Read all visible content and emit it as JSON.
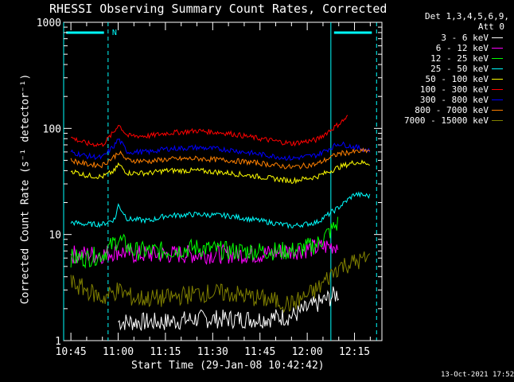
{
  "chart_data": {
    "type": "line",
    "title": "RHESSI Observing Summary Count Rates, Corrected",
    "xlabel": "Start Time (29-Jan-08 10:42:42)",
    "ylabel": "Corrected Count Rate (s⁻¹ detector⁻¹)",
    "x_ticks": [
      "10:45",
      "11:00",
      "11:15",
      "11:30",
      "11:45",
      "12:00",
      "12:15"
    ],
    "x_tick_minutes": [
      0,
      15,
      30,
      45,
      60,
      75,
      90
    ],
    "xlim_minutes": [
      -2.3,
      98.7
    ],
    "y_scale": "log",
    "ylim": [
      1,
      1000
    ],
    "y_ticks": [
      "1",
      "10",
      "100",
      "1000"
    ],
    "y_tick_values": [
      1,
      10,
      100,
      1000
    ],
    "detectors_note": "Det 1,3,4,5,6,9,",
    "attenuator_note": "Att 0",
    "timestamp": "13-Oct-2021 17:52",
    "n_marker": "N",
    "night_markers_minutes": [
      -2.3,
      11.8,
      82.5,
      97.0
    ],
    "night_bars": [
      {
        "start_minutes": -1.5,
        "end_minutes": 10.5
      },
      {
        "start_minutes": 83.5,
        "end_minutes": 95.5
      }
    ],
    "series": [
      {
        "name": "3 - 6 keV",
        "color": "#ffffff",
        "x": [
          15,
          20,
          30,
          40,
          50,
          60,
          70,
          78,
          85
        ],
        "y": [
          1.5,
          1.5,
          1.5,
          1.6,
          1.6,
          1.6,
          1.7,
          2.2,
          2.8
        ]
      },
      {
        "name": "6 - 12 keV",
        "color": "#ff00ff",
        "x": [
          0,
          5,
          10,
          15,
          20,
          30,
          40,
          50,
          60,
          70,
          78,
          85
        ],
        "y": [
          6.5,
          6.5,
          6.5,
          7.0,
          6.5,
          6.5,
          6.5,
          6.5,
          6.5,
          7.0,
          7.5,
          8.0
        ]
      },
      {
        "name": "12 - 25 keV",
        "color": "#00ff00",
        "x": [
          0,
          5,
          10,
          15,
          20,
          30,
          40,
          50,
          60,
          70,
          78,
          85
        ],
        "y": [
          6.0,
          6.0,
          6.5,
          9.0,
          7.0,
          7.0,
          7.5,
          7.0,
          7.0,
          7.0,
          8.0,
          13.0
        ]
      },
      {
        "name": "25 - 50 keV",
        "color": "#00ffff",
        "x": [
          0,
          5,
          10,
          14,
          15,
          18,
          25,
          30,
          40,
          50,
          60,
          70,
          78,
          85,
          90,
          95
        ],
        "y": [
          13.0,
          12.5,
          12.5,
          14.0,
          19.0,
          14.0,
          13.5,
          15.0,
          15.5,
          15.0,
          13.5,
          12.0,
          13.0,
          18.0,
          24.0,
          23.0
        ]
      },
      {
        "name": "50 - 100 keV",
        "color": "#ffff00",
        "x": [
          0,
          5,
          10,
          14,
          15,
          18,
          25,
          30,
          40,
          50,
          60,
          70,
          78,
          85,
          90,
          95
        ],
        "y": [
          40,
          36,
          35,
          40,
          46,
          38,
          38,
          40,
          40,
          38,
          35,
          32,
          35,
          43,
          48,
          47
        ]
      },
      {
        "name": "100 - 300 keV",
        "color": "#ff0000",
        "x": [
          0,
          5,
          10,
          14,
          15,
          18,
          25,
          30,
          40,
          50,
          60,
          70,
          78,
          85,
          88
        ],
        "y": [
          82,
          72,
          70,
          95,
          110,
          85,
          85,
          90,
          95,
          90,
          80,
          72,
          78,
          110,
          130
        ]
      },
      {
        "name": "300 - 800 keV",
        "color": "#0000ff",
        "x": [
          0,
          5,
          10,
          14,
          15,
          18,
          25,
          30,
          40,
          50,
          60,
          70,
          78,
          85,
          95
        ],
        "y": [
          60,
          55,
          53,
          70,
          80,
          60,
          60,
          64,
          66,
          63,
          57,
          52,
          56,
          72,
          62
        ]
      },
      {
        "name": "800 - 7000 keV",
        "color": "#ff8000",
        "x": [
          0,
          5,
          10,
          14,
          15,
          18,
          25,
          30,
          40,
          50,
          60,
          70,
          78,
          85,
          95
        ],
        "y": [
          50,
          46,
          45,
          55,
          60,
          50,
          49,
          51,
          52,
          50,
          47,
          43,
          46,
          58,
          62
        ]
      },
      {
        "name": "7000 - 15000 keV",
        "color": "#808000",
        "x": [
          0,
          5,
          10,
          15,
          20,
          30,
          40,
          50,
          60,
          70,
          78,
          85,
          95
        ],
        "y": [
          3.5,
          3.0,
          2.5,
          3.0,
          2.5,
          2.5,
          2.8,
          2.8,
          2.5,
          2.2,
          3.0,
          5.0,
          6.0
        ]
      }
    ]
  }
}
